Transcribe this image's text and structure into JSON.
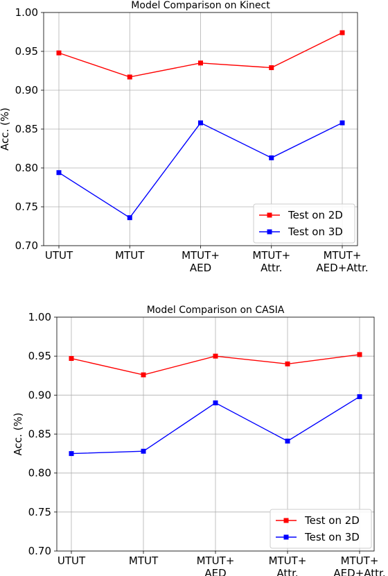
{
  "chart_data": [
    {
      "type": "line",
      "title": "Model Comparison on Kinect",
      "xlabel": "",
      "ylabel": "Acc. (%)",
      "categories": [
        "UTUT",
        "MTUT",
        "MTUT+\nAED",
        "MTUT+\nAttr.",
        "MTUT+\nAED+Attr."
      ],
      "ylim": [
        0.7,
        1.0
      ],
      "yticks": [
        "0.70",
        "0.75",
        "0.80",
        "0.85",
        "0.90",
        "0.95",
        "1.00"
      ],
      "grid": true,
      "legend_position": "lower-right",
      "series": [
        {
          "name": "Test on 2D",
          "color": "#ff0000",
          "marker": "square",
          "values": [
            0.948,
            0.917,
            0.935,
            0.929,
            0.974
          ]
        },
        {
          "name": "Test on 3D",
          "color": "#0000ff",
          "marker": "square",
          "values": [
            0.794,
            0.736,
            0.858,
            0.813,
            0.858
          ]
        }
      ]
    },
    {
      "type": "line",
      "title": "Model Comparison on CASIA",
      "xlabel": "",
      "ylabel": "Acc. (%)",
      "categories": [
        "UTUT",
        "MTUT",
        "MTUT+\nAED",
        "MTUT+\nAttr.",
        "MTUT+\nAED+Attr."
      ],
      "ylim": [
        0.7,
        1.0
      ],
      "yticks": [
        "0.70",
        "0.75",
        "0.80",
        "0.85",
        "0.90",
        "0.95",
        "1.00"
      ],
      "grid": true,
      "legend_position": "lower-right",
      "series": [
        {
          "name": "Test on 2D",
          "color": "#ff0000",
          "marker": "square",
          "values": [
            0.947,
            0.926,
            0.95,
            0.94,
            0.952
          ]
        },
        {
          "name": "Test on 3D",
          "color": "#0000ff",
          "marker": "square",
          "values": [
            0.825,
            0.828,
            0.89,
            0.841,
            0.898
          ]
        }
      ]
    }
  ]
}
